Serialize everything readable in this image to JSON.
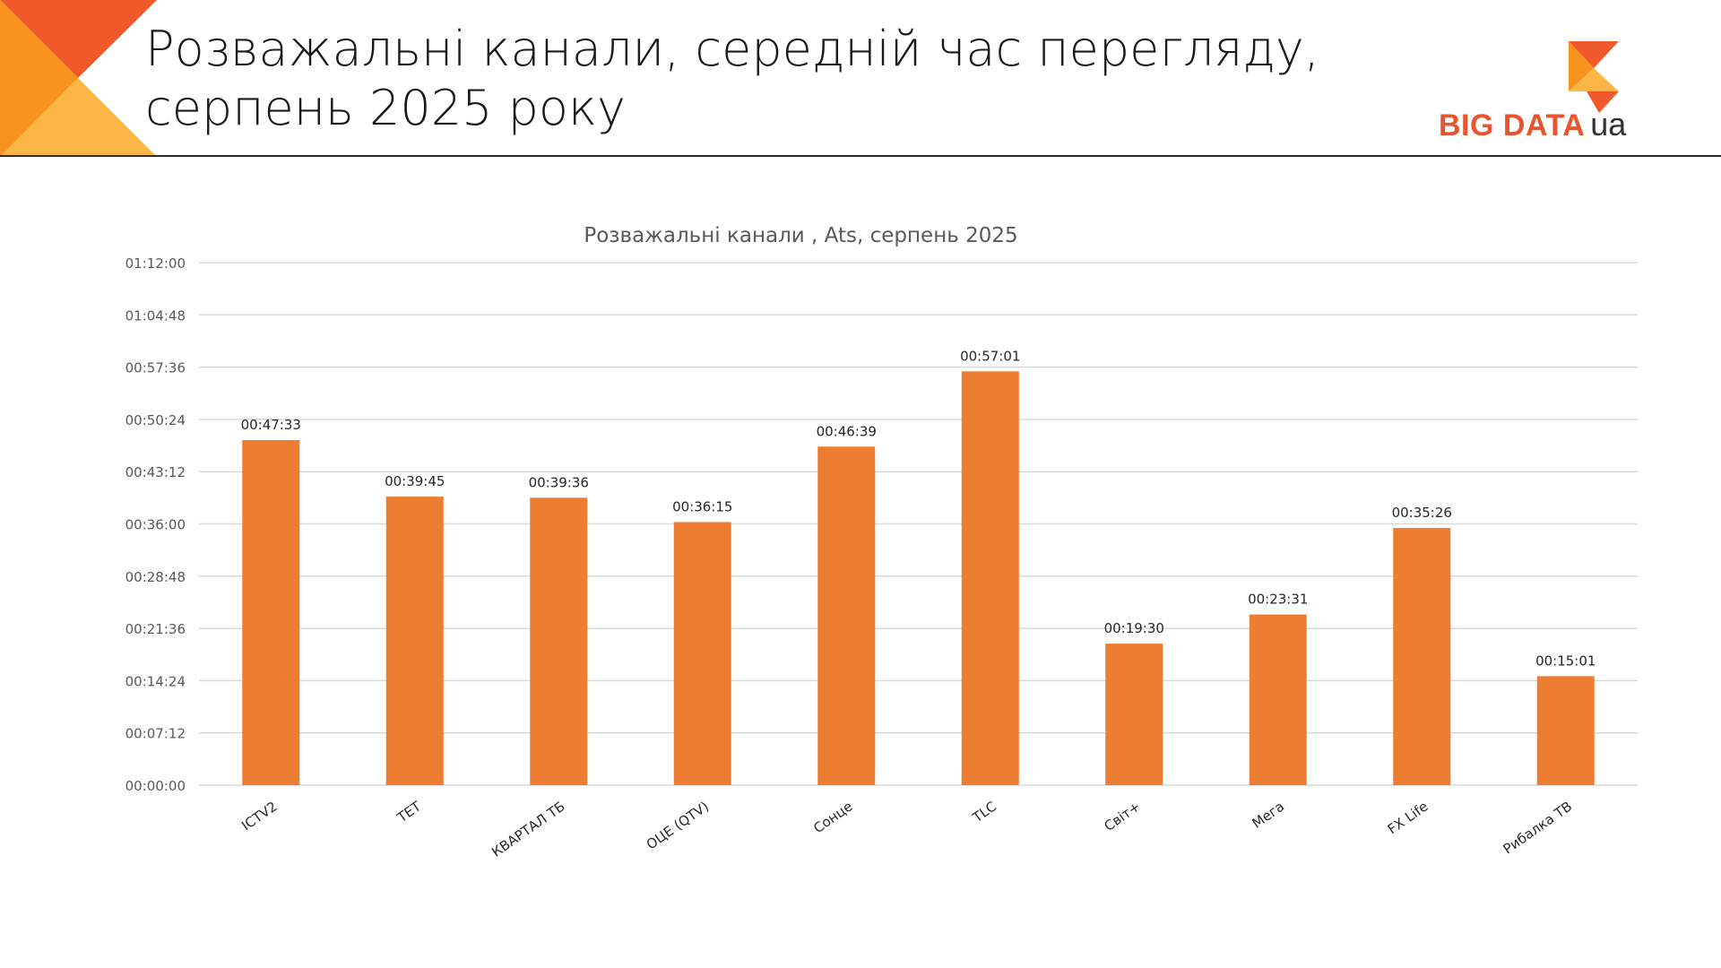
{
  "slide": {
    "title_line1": "Розважальні канали, середній час перегляду,",
    "title_line2": "серпень 2025 року"
  },
  "logo": {
    "main": "BIG DATA",
    "suffix": "ua",
    "colors": {
      "red": "#e8542d",
      "orange": "#f59c2a",
      "yellow": "#fbb645"
    }
  },
  "colors": {
    "bar": "#ed7d31",
    "grid": "#d9d9d9",
    "axis_text": "#595959",
    "label_text": "#262626"
  },
  "chart_data": {
    "type": "bar",
    "title": "Розважальні канали , Ats, серпень 2025",
    "xlabel": "",
    "ylabel": "",
    "categories": [
      "ICTV2",
      "ТЕТ",
      "КВАРТАЛ ТБ",
      "ОЦЕ (QTV)",
      "Сонце",
      "TLC",
      "Світ+",
      "Мега",
      "FX Life",
      "Рибалка ТВ"
    ],
    "values": [
      "00:47:33",
      "00:39:45",
      "00:39:36",
      "00:36:15",
      "00:46:39",
      "00:57:01",
      "00:19:30",
      "00:23:31",
      "00:35:26",
      "00:15:01"
    ],
    "y_ticks": [
      "00:00:00",
      "00:07:12",
      "00:14:24",
      "00:21:36",
      "00:28:48",
      "00:36:00",
      "00:43:12",
      "00:50:24",
      "00:57:36",
      "01:04:48",
      "01:12:00"
    ],
    "ylim": [
      "00:00:00",
      "01:12:00"
    ],
    "grid": true,
    "legend": "none",
    "data_labels": true
  }
}
